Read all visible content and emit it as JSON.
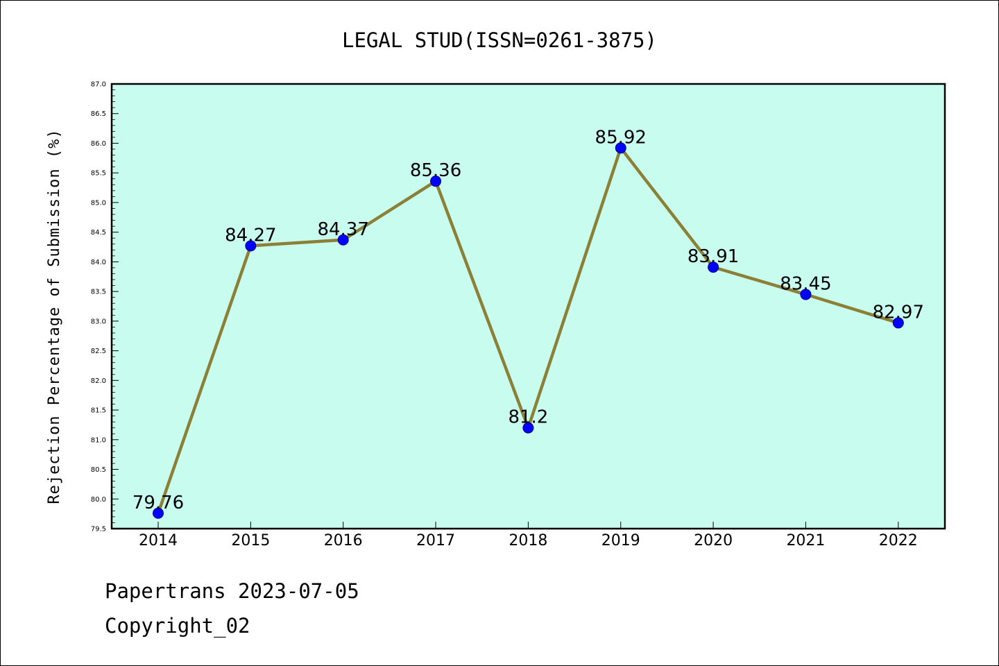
{
  "colors": {
    "plot_background": "#c8fcee",
    "line": "#8b8035",
    "marker_fill": "#0000ff",
    "marker_edge": "#000080",
    "axis": "#000000"
  },
  "footer": {
    "line1": "Papertrans 2023-07-05",
    "line2": "Copyright_02"
  },
  "chart_data": {
    "type": "line",
    "title": "LEGAL STUD(ISSN=0261-3875)",
    "xlabel": "",
    "ylabel": "Rejection Percentage of Submission (%)",
    "categories": [
      "2014",
      "2015",
      "2016",
      "2017",
      "2018",
      "2019",
      "2020",
      "2021",
      "2022"
    ],
    "values": [
      79.76,
      84.27,
      84.37,
      85.36,
      81.2,
      85.92,
      83.91,
      83.45,
      82.97
    ],
    "data_labels": [
      "79.76",
      "84.27",
      "84.37",
      "85.36",
      "81.2",
      "85.92",
      "83.91",
      "83.45",
      "82.97"
    ],
    "ylim": [
      79.5,
      87.0
    ],
    "yticks": [
      "79.5",
      "80.0",
      "80.5",
      "81.0",
      "81.5",
      "82.0",
      "82.5",
      "83.0",
      "83.5",
      "84.0",
      "84.5",
      "85.0",
      "85.5",
      "86.0",
      "86.5",
      "87.0"
    ],
    "grid": false,
    "legend": "none"
  }
}
